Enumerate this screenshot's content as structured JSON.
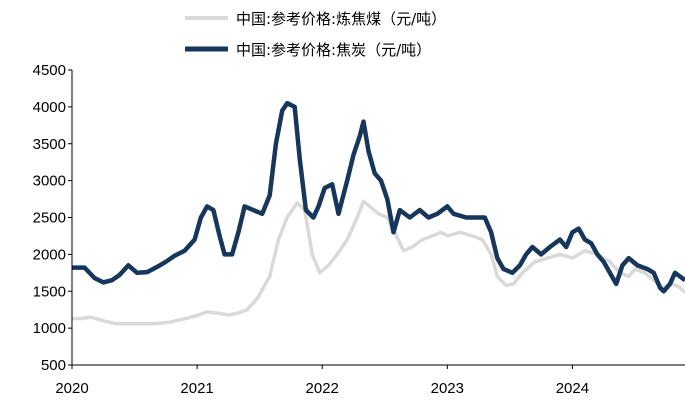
{
  "chart_data": {
    "type": "line",
    "title": "",
    "xlabel": "",
    "ylabel": "",
    "ylim": [
      500,
      4500
    ],
    "xlim": [
      2020,
      2024.9
    ],
    "yticks": [
      "500",
      "1000",
      "1500",
      "2000",
      "2500",
      "3000",
      "3500",
      "4000",
      "4500"
    ],
    "xticks": [
      "2020",
      "2021",
      "2022",
      "2023",
      "2024"
    ],
    "legend_position": "top",
    "grid": false,
    "series": [
      {
        "name": "中国:参考价格:炼焦煤（元/吨）",
        "color": "#d9d9d9",
        "points": [
          [
            2020.0,
            1130
          ],
          [
            2020.08,
            1130
          ],
          [
            2020.15,
            1150
          ],
          [
            2020.25,
            1100
          ],
          [
            2020.35,
            1060
          ],
          [
            2020.5,
            1060
          ],
          [
            2020.65,
            1060
          ],
          [
            2020.78,
            1080
          ],
          [
            2020.88,
            1120
          ],
          [
            2020.98,
            1160
          ],
          [
            2021.08,
            1220
          ],
          [
            2021.18,
            1200
          ],
          [
            2021.25,
            1180
          ],
          [
            2021.32,
            1200
          ],
          [
            2021.4,
            1250
          ],
          [
            2021.48,
            1400
          ],
          [
            2021.58,
            1700
          ],
          [
            2021.65,
            2200
          ],
          [
            2021.72,
            2500
          ],
          [
            2021.8,
            2700
          ],
          [
            2021.86,
            2600
          ],
          [
            2021.92,
            2000
          ],
          [
            2021.98,
            1750
          ],
          [
            2022.05,
            1850
          ],
          [
            2022.12,
            2000
          ],
          [
            2022.2,
            2200
          ],
          [
            2022.28,
            2500
          ],
          [
            2022.33,
            2720
          ],
          [
            2022.38,
            2650
          ],
          [
            2022.45,
            2550
          ],
          [
            2022.52,
            2500
          ],
          [
            2022.58,
            2300
          ],
          [
            2022.65,
            2050
          ],
          [
            2022.72,
            2100
          ],
          [
            2022.8,
            2200
          ],
          [
            2022.88,
            2250
          ],
          [
            2022.95,
            2300
          ],
          [
            2023.0,
            2250
          ],
          [
            2023.1,
            2300
          ],
          [
            2023.2,
            2250
          ],
          [
            2023.28,
            2200
          ],
          [
            2023.35,
            2000
          ],
          [
            2023.4,
            1700
          ],
          [
            2023.47,
            1580
          ],
          [
            2023.53,
            1600
          ],
          [
            2023.6,
            1750
          ],
          [
            2023.7,
            1900
          ],
          [
            2023.8,
            1950
          ],
          [
            2023.9,
            2000
          ],
          [
            2024.0,
            1950
          ],
          [
            2024.1,
            2050
          ],
          [
            2024.2,
            2000
          ],
          [
            2024.3,
            1900
          ],
          [
            2024.38,
            1750
          ],
          [
            2024.45,
            1700
          ],
          [
            2024.5,
            1800
          ],
          [
            2024.58,
            1750
          ],
          [
            2024.65,
            1650
          ],
          [
            2024.72,
            1550
          ],
          [
            2024.8,
            1600
          ],
          [
            2024.86,
            1550
          ],
          [
            2024.9,
            1480
          ]
        ]
      },
      {
        "name": "中国:参考价格:焦炭（元/吨）",
        "color": "#16365c",
        "points": [
          [
            2020.0,
            1820
          ],
          [
            2020.1,
            1820
          ],
          [
            2020.18,
            1680
          ],
          [
            2020.25,
            1620
          ],
          [
            2020.32,
            1650
          ],
          [
            2020.38,
            1720
          ],
          [
            2020.45,
            1850
          ],
          [
            2020.52,
            1750
          ],
          [
            2020.6,
            1760
          ],
          [
            2020.68,
            1830
          ],
          [
            2020.75,
            1900
          ],
          [
            2020.82,
            1980
          ],
          [
            2020.9,
            2050
          ],
          [
            2020.98,
            2200
          ],
          [
            2021.03,
            2500
          ],
          [
            2021.08,
            2650
          ],
          [
            2021.13,
            2600
          ],
          [
            2021.18,
            2250
          ],
          [
            2021.22,
            2000
          ],
          [
            2021.28,
            2000
          ],
          [
            2021.33,
            2300
          ],
          [
            2021.38,
            2650
          ],
          [
            2021.45,
            2600
          ],
          [
            2021.52,
            2550
          ],
          [
            2021.58,
            2800
          ],
          [
            2021.63,
            3500
          ],
          [
            2021.68,
            3950
          ],
          [
            2021.72,
            4050
          ],
          [
            2021.78,
            4000
          ],
          [
            2021.82,
            3300
          ],
          [
            2021.87,
            2600
          ],
          [
            2021.93,
            2500
          ],
          [
            2021.97,
            2650
          ],
          [
            2022.02,
            2900
          ],
          [
            2022.08,
            2950
          ],
          [
            2022.13,
            2550
          ],
          [
            2022.2,
            3000
          ],
          [
            2022.25,
            3350
          ],
          [
            2022.3,
            3600
          ],
          [
            2022.33,
            3800
          ],
          [
            2022.37,
            3400
          ],
          [
            2022.42,
            3100
          ],
          [
            2022.47,
            3000
          ],
          [
            2022.52,
            2750
          ],
          [
            2022.57,
            2300
          ],
          [
            2022.62,
            2600
          ],
          [
            2022.7,
            2500
          ],
          [
            2022.78,
            2600
          ],
          [
            2022.85,
            2500
          ],
          [
            2022.92,
            2550
          ],
          [
            2023.0,
            2650
          ],
          [
            2023.05,
            2550
          ],
          [
            2023.15,
            2500
          ],
          [
            2023.3,
            2500
          ],
          [
            2023.35,
            2300
          ],
          [
            2023.4,
            1950
          ],
          [
            2023.45,
            1800
          ],
          [
            2023.52,
            1750
          ],
          [
            2023.58,
            1850
          ],
          [
            2023.63,
            2000
          ],
          [
            2023.68,
            2100
          ],
          [
            2023.75,
            2000
          ],
          [
            2023.82,
            2100
          ],
          [
            2023.9,
            2200
          ],
          [
            2023.95,
            2100
          ],
          [
            2024.0,
            2300
          ],
          [
            2024.05,
            2350
          ],
          [
            2024.1,
            2200
          ],
          [
            2024.15,
            2150
          ],
          [
            2024.2,
            2000
          ],
          [
            2024.25,
            1900
          ],
          [
            2024.3,
            1750
          ],
          [
            2024.35,
            1600
          ],
          [
            2024.4,
            1850
          ],
          [
            2024.45,
            1950
          ],
          [
            2024.52,
            1850
          ],
          [
            2024.6,
            1800
          ],
          [
            2024.65,
            1750
          ],
          [
            2024.7,
            1550
          ],
          [
            2024.73,
            1500
          ],
          [
            2024.78,
            1600
          ],
          [
            2024.82,
            1750
          ],
          [
            2024.86,
            1700
          ],
          [
            2024.9,
            1650
          ]
        ]
      }
    ]
  }
}
